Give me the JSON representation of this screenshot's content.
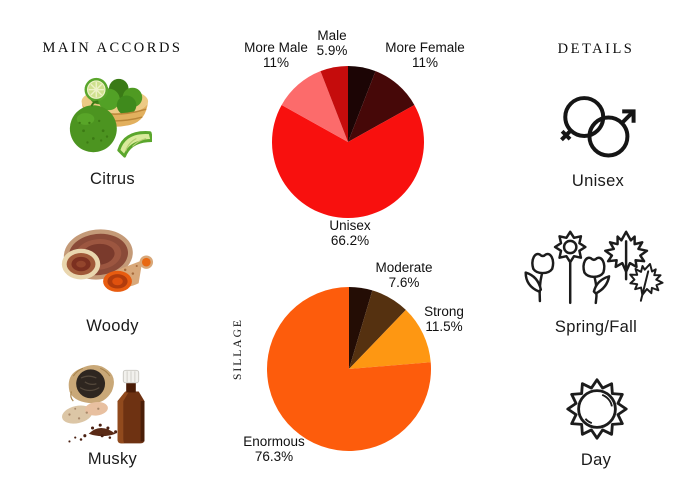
{
  "page": {
    "background": "#ffffff",
    "text_color": "#1a1a1a"
  },
  "left_column": {
    "header": "MAIN ACCORDS",
    "items": [
      {
        "label": "Citrus",
        "image": "bergamot-citrus-photo"
      },
      {
        "label": "Woody",
        "image": "wood-slices-resin-photo"
      },
      {
        "label": "Musky",
        "image": "musk-pod-amber-bottle-photo"
      }
    ]
  },
  "right_column": {
    "header": "DETAILS",
    "items": [
      {
        "label": "Unisex",
        "icon": "unisex-gender-icon"
      },
      {
        "label": "Spring/Fall",
        "icon": "spring-fall-flowers-leaves-icon"
      },
      {
        "label": "Day",
        "icon": "day-sun-icon"
      }
    ]
  },
  "chart_data": [
    {
      "type": "pie",
      "name": "gender-audience",
      "start": "top",
      "direction": "clockwise",
      "segments": [
        {
          "label": "",
          "pct_text": "",
          "value": 5.9,
          "color": "#1c0505"
        },
        {
          "label": "More Female",
          "pct_text": "11%",
          "value": 11,
          "color": "#460808"
        },
        {
          "label": "Unisex",
          "pct_text": "66.2%",
          "value": 66.2,
          "color": "#f8100e"
        },
        {
          "label": "More Male",
          "pct_text": "11%",
          "value": 11,
          "color": "#fc6b6b"
        },
        {
          "label": "Male",
          "pct_text": "5.9%",
          "value": 5.9,
          "color": "#c50c0c"
        }
      ]
    },
    {
      "type": "pie",
      "name": "sillage",
      "axis_label": "SILLAGE",
      "start": "top",
      "direction": "clockwise",
      "segments": [
        {
          "label": "",
          "pct_text": "",
          "value": 4.6,
          "color": "#240d05"
        },
        {
          "label": "Moderate",
          "pct_text": "7.6%",
          "value": 7.6,
          "color": "#553110"
        },
        {
          "label": "Strong",
          "pct_text": "11.5%",
          "value": 11.5,
          "color": "#fe9712"
        },
        {
          "label": "Enormous",
          "pct_text": "76.3%",
          "value": 76.3,
          "color": "#fd5c0c"
        }
      ]
    }
  ]
}
